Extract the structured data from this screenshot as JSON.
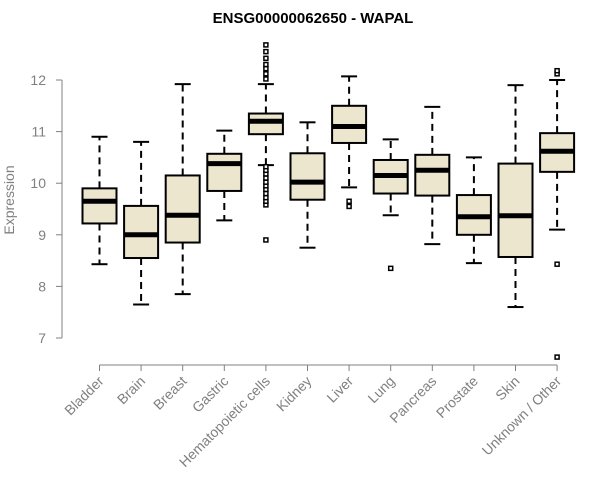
{
  "colors": {
    "box_fill": "#ede6cf",
    "box_stroke": "#000000",
    "axis": "#808080",
    "text_gray": "#808080",
    "title": "#000000"
  },
  "chart_data": {
    "type": "boxplot",
    "title": "ENSG00000062650 - WAPAL",
    "xlabel": "",
    "ylabel": "Expression",
    "ylim": [
      6.5,
      12.8
    ],
    "yticks": [
      7,
      8,
      9,
      10,
      11,
      12
    ],
    "grid": false,
    "categories": [
      "Bladder",
      "Brain",
      "Breast",
      "Gastric",
      "Hematopoietic cells",
      "Kidney",
      "Liver",
      "Lung",
      "Pancreas",
      "Prostate",
      "Skin",
      "Unknown / Other"
    ],
    "boxes": [
      {
        "category": "Bladder",
        "whisker_low": 8.43,
        "q1": 9.22,
        "median": 9.65,
        "q3": 9.9,
        "whisker_high": 10.9,
        "outliers": []
      },
      {
        "category": "Brain",
        "whisker_low": 7.65,
        "q1": 8.55,
        "median": 9.0,
        "q3": 9.56,
        "whisker_high": 10.8,
        "outliers": []
      },
      {
        "category": "Breast",
        "whisker_low": 7.85,
        "q1": 8.85,
        "median": 9.38,
        "q3": 10.15,
        "whisker_high": 11.92,
        "outliers": []
      },
      {
        "category": "Gastric",
        "whisker_low": 9.28,
        "q1": 9.85,
        "median": 10.38,
        "q3": 10.57,
        "whisker_high": 11.02,
        "outliers": []
      },
      {
        "category": "Hematopoietic cells",
        "whisker_low": 10.35,
        "q1": 10.95,
        "median": 11.2,
        "q3": 11.35,
        "whisker_high": 11.92,
        "outliers": [
          8.9,
          9.58,
          9.65,
          9.72,
          9.8,
          9.88,
          9.95,
          10.02,
          10.1,
          10.18,
          10.25,
          10.32,
          12.02,
          12.12,
          12.22,
          12.3,
          12.42,
          12.55,
          12.68
        ]
      },
      {
        "category": "Kidney",
        "whisker_low": 8.75,
        "q1": 9.68,
        "median": 10.02,
        "q3": 10.58,
        "whisker_high": 11.18,
        "outliers": []
      },
      {
        "category": "Liver",
        "whisker_low": 9.92,
        "q1": 10.78,
        "median": 11.1,
        "q3": 11.5,
        "whisker_high": 12.07,
        "outliers": [
          9.55,
          9.65
        ]
      },
      {
        "category": "Lung",
        "whisker_low": 9.38,
        "q1": 9.8,
        "median": 10.15,
        "q3": 10.45,
        "whisker_high": 10.85,
        "outliers": [
          8.35
        ]
      },
      {
        "category": "Pancreas",
        "whisker_low": 8.82,
        "q1": 9.76,
        "median": 10.25,
        "q3": 10.55,
        "whisker_high": 11.48,
        "outliers": []
      },
      {
        "category": "Prostate",
        "whisker_low": 8.45,
        "q1": 9.0,
        "median": 9.35,
        "q3": 9.77,
        "whisker_high": 10.5,
        "outliers": []
      },
      {
        "category": "Skin",
        "whisker_low": 7.6,
        "q1": 8.57,
        "median": 9.37,
        "q3": 10.38,
        "whisker_high": 11.9,
        "outliers": []
      },
      {
        "category": "Unknown / Other",
        "whisker_low": 9.1,
        "q1": 10.22,
        "median": 10.62,
        "q3": 10.97,
        "whisker_high": 12.0,
        "outliers": [
          6.63,
          8.43,
          12.12,
          12.18
        ]
      }
    ]
  }
}
